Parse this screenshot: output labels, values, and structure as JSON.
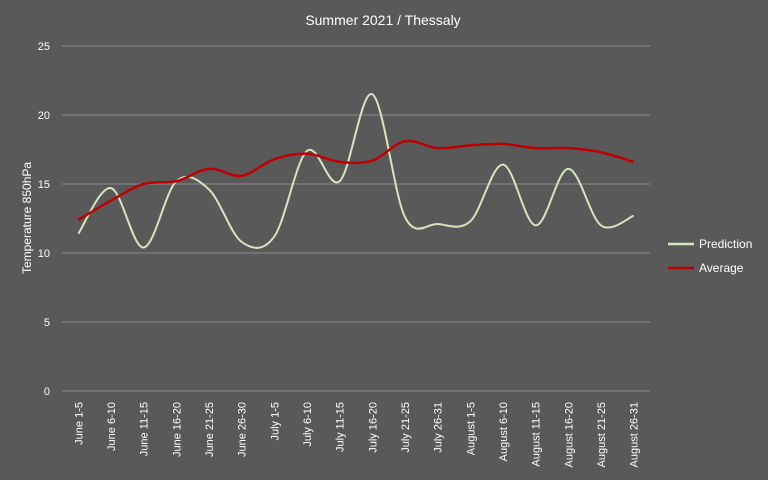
{
  "chart_data": {
    "type": "line",
    "title": "Summer 2021 / Thessaly",
    "ylabel": "Temperature 850hPa",
    "xlabel": "",
    "ylim": [
      0,
      25
    ],
    "yticks": [
      0,
      5,
      10,
      15,
      20,
      25
    ],
    "grid": true,
    "legend_position": "right",
    "categories": [
      "June 1-5",
      "June 6-10",
      "June 11-15",
      "June 16-20",
      "June 21-25",
      "June 26-30",
      "July 1-5",
      "July 6-10",
      "July 11-15",
      "July 16-20",
      "July 21-25",
      "July 26-31",
      "August 1-5",
      "August 6-10",
      "August 11-15",
      "August 16-20",
      "August 21-25",
      "August 26-31"
    ],
    "series": [
      {
        "name": "Prediction",
        "color": "#d7e4bd",
        "values": [
          11.4,
          14.7,
          10.4,
          15.2,
          14.6,
          10.8,
          11.2,
          17.4,
          15.2,
          21.5,
          12.6,
          12.1,
          12.3,
          16.4,
          12.0,
          16.1,
          12.0,
          12.7
        ]
      },
      {
        "name": "Average",
        "color": "#c00000",
        "values": [
          12.4,
          13.8,
          15.0,
          15.2,
          16.1,
          15.6,
          16.8,
          17.2,
          16.6,
          16.7,
          18.1,
          17.6,
          17.8,
          17.9,
          17.6,
          17.6,
          17.3,
          16.6
        ]
      }
    ]
  }
}
